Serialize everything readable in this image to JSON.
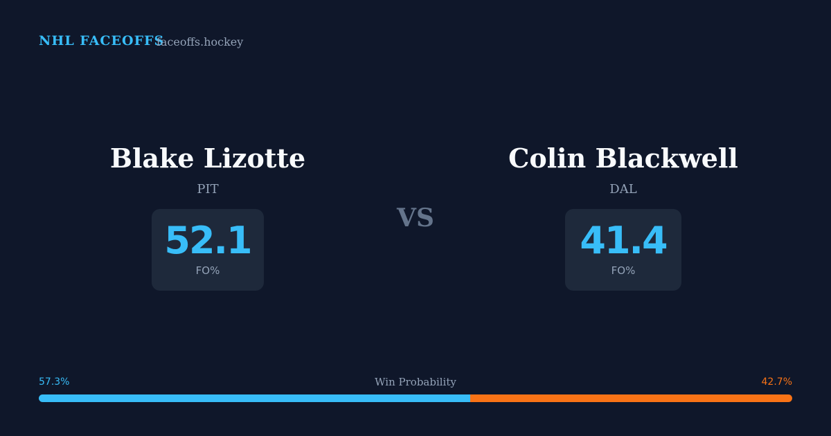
{
  "header": {
    "title": "NHL FACEOFFS",
    "site": "faceoffs.hockey"
  },
  "players": [
    {
      "name": "Blake Lizotte",
      "team": "PIT",
      "stat": 52.1,
      "stat_label": "FO%"
    },
    {
      "name": "Colin Blackwell",
      "team": "DAL",
      "stat": 41.4,
      "stat_label": "FO%"
    }
  ],
  "vs": "VS",
  "win_probability": {
    "title": "Win Probability",
    "home": {
      "value": 57.3,
      "label": "57.3%",
      "color": "#38bdf8"
    },
    "away": {
      "value": 42.7,
      "label": "42.7%",
      "color": "#f97316"
    }
  }
}
